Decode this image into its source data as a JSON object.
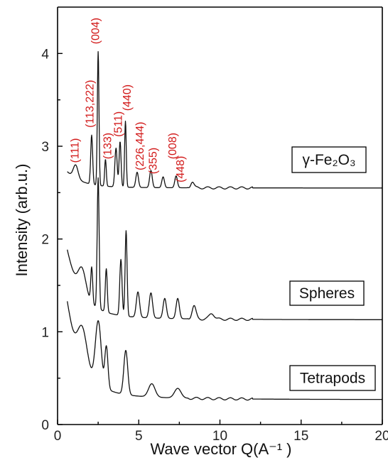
{
  "chart_data": {
    "type": "line",
    "xlabel": "Wave vector Q(A⁻¹ )",
    "ylabel": "Intensity (arb.u.)",
    "xlim": [
      0,
      20
    ],
    "ylim": [
      0,
      4.5
    ],
    "xticks": [
      "0",
      "5",
      "10",
      "15",
      "20"
    ],
    "yticks": [
      "0",
      "1",
      "2",
      "3",
      "4"
    ],
    "grid": false,
    "series": [
      {
        "name": "γ-Fe₂O₃",
        "color": "#111111",
        "baseline": 2.55,
        "start_x": 0.6,
        "start_y": 2.73,
        "peaks": [
          {
            "x": 1.1,
            "y": 2.8,
            "w": 0.15
          },
          {
            "x": 2.1,
            "y": 3.12,
            "w": 0.06
          },
          {
            "x": 2.5,
            "y": 4.02,
            "w": 0.05
          },
          {
            "x": 2.95,
            "y": 2.86,
            "w": 0.05
          },
          {
            "x": 3.6,
            "y": 2.98,
            "w": 0.07
          },
          {
            "x": 3.85,
            "y": 3.05,
            "w": 0.06
          },
          {
            "x": 4.18,
            "y": 3.27,
            "w": 0.05
          },
          {
            "x": 4.9,
            "y": 2.72,
            "w": 0.08
          },
          {
            "x": 5.75,
            "y": 2.74,
            "w": 0.08
          },
          {
            "x": 6.5,
            "y": 2.67,
            "w": 0.08
          },
          {
            "x": 7.3,
            "y": 2.68,
            "w": 0.08
          },
          {
            "x": 8.3,
            "y": 2.62,
            "w": 0.1
          }
        ]
      },
      {
        "name": "Spheres",
        "color": "#111111",
        "baseline": 1.13,
        "start_x": 0.6,
        "start_y": 1.9,
        "peaks": [
          {
            "x": 1.45,
            "y": 1.7,
            "w": 0.25
          },
          {
            "x": 2.1,
            "y": 1.7,
            "w": 0.06
          },
          {
            "x": 2.5,
            "y": 2.66,
            "w": 0.06
          },
          {
            "x": 3.0,
            "y": 1.68,
            "w": 0.06
          },
          {
            "x": 3.9,
            "y": 1.78,
            "w": 0.07
          },
          {
            "x": 4.22,
            "y": 2.09,
            "w": 0.06
          },
          {
            "x": 4.95,
            "y": 1.43,
            "w": 0.1
          },
          {
            "x": 5.75,
            "y": 1.42,
            "w": 0.1
          },
          {
            "x": 6.6,
            "y": 1.36,
            "w": 0.1
          },
          {
            "x": 7.4,
            "y": 1.36,
            "w": 0.1
          },
          {
            "x": 8.4,
            "y": 1.28,
            "w": 0.12
          },
          {
            "x": 9.5,
            "y": 1.2,
            "w": 0.15
          }
        ]
      },
      {
        "name": "Tetrapods",
        "color": "#111111",
        "baseline": 0.27,
        "start_x": 0.6,
        "start_y": 1.35,
        "peaks": [
          {
            "x": 1.45,
            "y": 1.07,
            "w": 0.3
          },
          {
            "x": 2.5,
            "y": 1.12,
            "w": 0.18
          },
          {
            "x": 3.0,
            "y": 0.85,
            "w": 0.1
          },
          {
            "x": 4.2,
            "y": 0.8,
            "w": 0.12
          },
          {
            "x": 5.8,
            "y": 0.44,
            "w": 0.2
          },
          {
            "x": 7.4,
            "y": 0.39,
            "w": 0.2
          }
        ]
      }
    ],
    "annotations": [
      {
        "text": "(111)",
        "x": 1.3,
        "y": 2.82
      },
      {
        "text": "(113,222)",
        "x": 2.2,
        "y": 3.2
      },
      {
        "text": "(004)",
        "x": 2.55,
        "y": 4.1
      },
      {
        "text": "(133)",
        "x": 3.3,
        "y": 2.86
      },
      {
        "text": "(511)",
        "x": 3.95,
        "y": 3.1
      },
      {
        "text": "(440)",
        "x": 4.5,
        "y": 3.38
      },
      {
        "text": "(226,444)",
        "x": 5.3,
        "y": 2.74
      },
      {
        "text": "(355)",
        "x": 6.1,
        "y": 2.7
      },
      {
        "text": "(008)",
        "x": 7.3,
        "y": 2.86
      },
      {
        "text": "(448)",
        "x": 7.8,
        "y": 2.61
      }
    ]
  }
}
